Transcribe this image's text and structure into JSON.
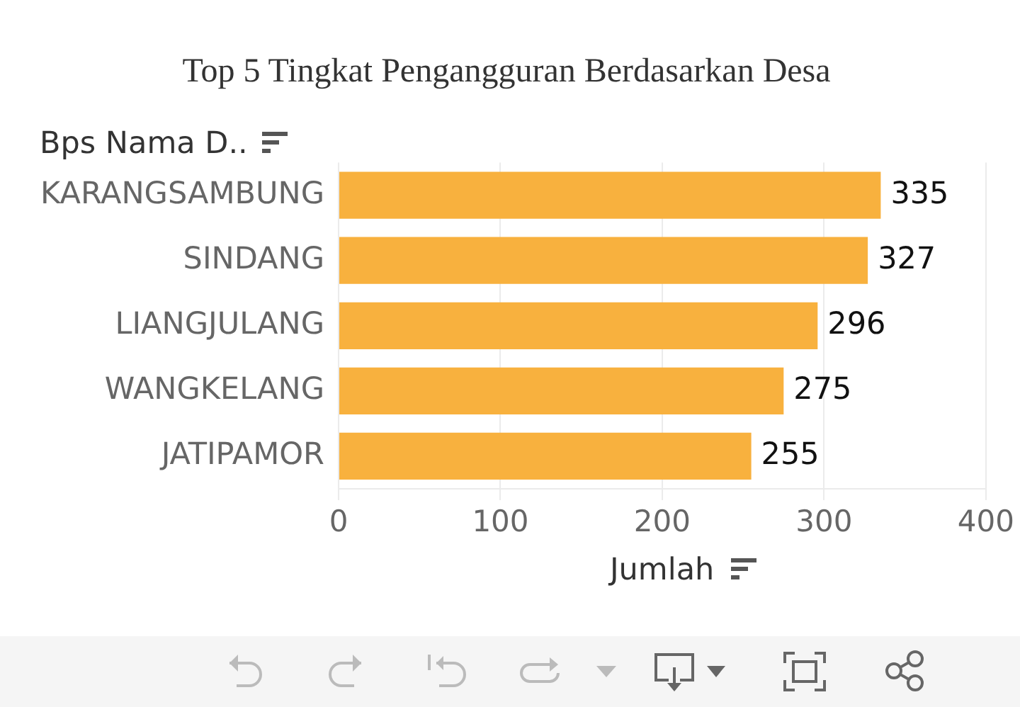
{
  "chart_data": {
    "type": "bar",
    "orientation": "horizontal",
    "title": "Top 5 Tingkat Pengangguran Berdasarkan Desa",
    "xlabel": "Jumlah",
    "ylabel": "Bps Nama D..",
    "categories": [
      "KARANGSAMBUNG",
      "SINDANG",
      "LIANGJULANG",
      "WANGKELANG",
      "JATIPAMOR"
    ],
    "values": [
      335,
      327,
      296,
      275,
      255
    ],
    "color": "#f8b13e",
    "xlim": [
      0,
      400
    ],
    "xticks": [
      0,
      100,
      200,
      300,
      400
    ],
    "grid": "x",
    "data_labels": true
  }
}
